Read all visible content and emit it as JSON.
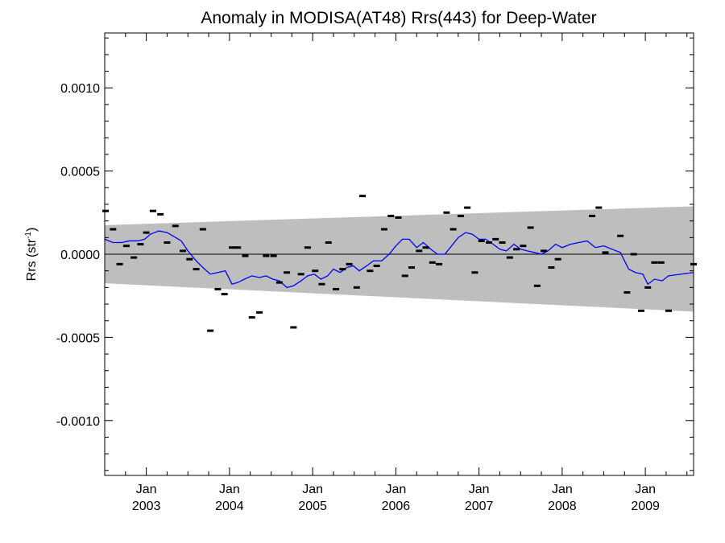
{
  "chart_data": {
    "type": "scatter",
    "title": "Anomaly in MODISA(AT48) Rrs(443) for Deep-Water",
    "ylabel": "Rrs (str",
    "ylabel_sup": "-1",
    "ylabel_close": ")",
    "ylim": [
      -0.00133,
      0.00133
    ],
    "xlim": [
      2002.5,
      2009.58
    ],
    "grid": false,
    "yticks": [
      {
        "value": 0.001,
        "label": "0.0010"
      },
      {
        "value": 0.0005,
        "label": "0.0005"
      },
      {
        "value": 0.0,
        "label": "0.0000"
      },
      {
        "value": -0.0005,
        "label": "-0.0005"
      },
      {
        "value": -0.001,
        "label": "-0.0010"
      }
    ],
    "xticks": [
      {
        "value": 2003.0,
        "month": "Jan",
        "year": "2003"
      },
      {
        "value": 2004.0,
        "month": "Jan",
        "year": "2004"
      },
      {
        "value": 2005.0,
        "month": "Jan",
        "year": "2005"
      },
      {
        "value": 2006.0,
        "month": "Jan",
        "year": "2006"
      },
      {
        "value": 2007.0,
        "month": "Jan",
        "year": "2007"
      },
      {
        "value": 2008.0,
        "month": "Jan",
        "year": "2008"
      },
      {
        "value": 2009.0,
        "month": "Jan",
        "year": "2009"
      }
    ],
    "band": {
      "x": [
        2002.5,
        2009.58
      ],
      "upper": [
        0.000175,
        0.000288
      ],
      "lower": [
        -0.000175,
        -0.000345
      ],
      "color": "#bebebe"
    },
    "zero_line_color": "#000000",
    "points": {
      "color": "#000000",
      "x": [
        2002.51,
        2002.6,
        2002.68,
        2002.76,
        2002.85,
        2002.93,
        2003.0,
        2003.08,
        2003.17,
        2003.25,
        2003.35,
        2003.44,
        2003.52,
        2003.6,
        2003.68,
        2003.77,
        2003.86,
        2003.94,
        2004.03,
        2004.1,
        2004.19,
        2004.27,
        2004.36,
        2004.44,
        2004.53,
        2004.6,
        2004.69,
        2004.77,
        2004.86,
        2004.94,
        2005.03,
        2005.11,
        2005.19,
        2005.28,
        2005.36,
        2005.44,
        2005.53,
        2005.6,
        2005.69,
        2005.77,
        2005.86,
        2005.94,
        2006.03,
        2006.11,
        2006.19,
        2006.28,
        2006.36,
        2006.44,
        2006.52,
        2006.61,
        2006.69,
        2006.78,
        2006.86,
        2006.95,
        2007.03,
        2007.12,
        2007.2,
        2007.28,
        2007.37,
        2007.45,
        2007.53,
        2007.62,
        2007.7,
        2007.78,
        2007.87,
        2007.95,
        2008.36,
        2008.44,
        2008.52,
        2008.7,
        2008.78,
        2008.86,
        2008.95,
        2009.03,
        2009.11,
        2009.19,
        2009.28,
        2009.58
      ],
      "y": [
        0.00026,
        0.00015,
        -6e-05,
        5e-05,
        -2e-05,
        6e-05,
        0.00013,
        0.00026,
        0.00024,
        7e-05,
        0.00017,
        2e-05,
        -3e-05,
        -9e-05,
        0.00015,
        -0.00046,
        -0.00021,
        -0.00024,
        4e-05,
        4e-05,
        -1e-05,
        -0.00038,
        -0.00035,
        -1e-05,
        -1e-05,
        -0.00017,
        -0.00011,
        -0.00044,
        -0.00012,
        4e-05,
        -0.0001,
        -0.00018,
        7e-05,
        -0.00021,
        -9e-05,
        -6e-05,
        -0.0002,
        0.00035,
        -0.0001,
        -7e-05,
        0.00015,
        0.00023,
        0.00022,
        -0.00013,
        -8e-05,
        2e-05,
        4e-05,
        -5e-05,
        -6e-05,
        0.00025,
        0.00015,
        0.00023,
        0.00028,
        -0.00011,
        8e-05,
        7e-05,
        9e-05,
        7e-05,
        -2e-05,
        3e-05,
        5e-05,
        0.00016,
        -0.00019,
        2e-05,
        -8e-05,
        -3e-05,
        0.00023,
        0.00028,
        1e-05,
        0.00011,
        -0.00023,
        0.0,
        -0.00034,
        -0.0002,
        -5e-05,
        -5e-05,
        -0.00034,
        -6e-05
      ]
    },
    "line": {
      "name": "",
      "color": "#0000ff",
      "x": [
        2002.5,
        2002.6,
        2002.7,
        2002.8,
        2002.9,
        2002.98,
        2003.05,
        2003.15,
        2003.25,
        2003.32,
        2003.42,
        2003.5,
        2003.6,
        2003.68,
        2003.77,
        2003.86,
        2003.95,
        2004.03,
        2004.1,
        2004.18,
        2004.27,
        2004.36,
        2004.44,
        2004.52,
        2004.6,
        2004.69,
        2004.77,
        2004.86,
        2004.94,
        2005.02,
        2005.1,
        2005.18,
        2005.25,
        2005.33,
        2005.41,
        2005.49,
        2005.56,
        2005.65,
        2005.73,
        2005.83,
        2005.92,
        2006.0,
        2006.08,
        2006.16,
        2006.25,
        2006.33,
        2006.42,
        2006.5,
        2006.59,
        2006.67,
        2006.75,
        2006.84,
        2006.92,
        2007.0,
        2007.08,
        2007.17,
        2007.25,
        2007.33,
        2007.42,
        2007.5,
        2007.58,
        2007.67,
        2007.75,
        2007.83,
        2007.92,
        2008.0,
        2008.1,
        2008.2,
        2008.3,
        2008.4,
        2008.5,
        2008.6,
        2008.7,
        2008.8,
        2008.88,
        2008.97,
        2009.03,
        2009.11,
        2009.2,
        2009.28,
        2009.58
      ],
      "y": [
        9e-05,
        7e-05,
        7e-05,
        8e-05,
        8e-05,
        9e-05,
        0.00012,
        0.00014,
        0.00013,
        0.00011,
        8e-05,
        2e-05,
        -4e-05,
        -8e-05,
        -0.00012,
        -0.00011,
        -0.0001,
        -0.00018,
        -0.00017,
        -0.00015,
        -0.00013,
        -0.00014,
        -0.00013,
        -0.00015,
        -0.00016,
        -0.0002,
        -0.00019,
        -0.00016,
        -0.00013,
        -0.00012,
        -0.00015,
        -0.00013,
        -9e-05,
        -0.00011,
        -8e-05,
        -7e-05,
        -0.0001,
        -7e-05,
        -4e-05,
        -4e-05,
        0.0,
        5e-05,
        9e-05,
        9e-05,
        4e-05,
        7e-05,
        3e-05,
        0.0,
        0.0,
        5e-05,
        0.0001,
        0.00013,
        0.00012,
        9e-05,
        9e-05,
        6e-05,
        3e-05,
        2e-05,
        6e-05,
        3e-05,
        2e-05,
        1e-05,
        0.0,
        2e-05,
        6e-05,
        4e-05,
        6e-05,
        7e-05,
        8e-05,
        4e-05,
        5e-05,
        3e-05,
        1e-05,
        -9e-05,
        -0.00011,
        -0.00012,
        -0.00018,
        -0.00015,
        -0.00016,
        -0.00013,
        -0.00011
      ]
    }
  }
}
